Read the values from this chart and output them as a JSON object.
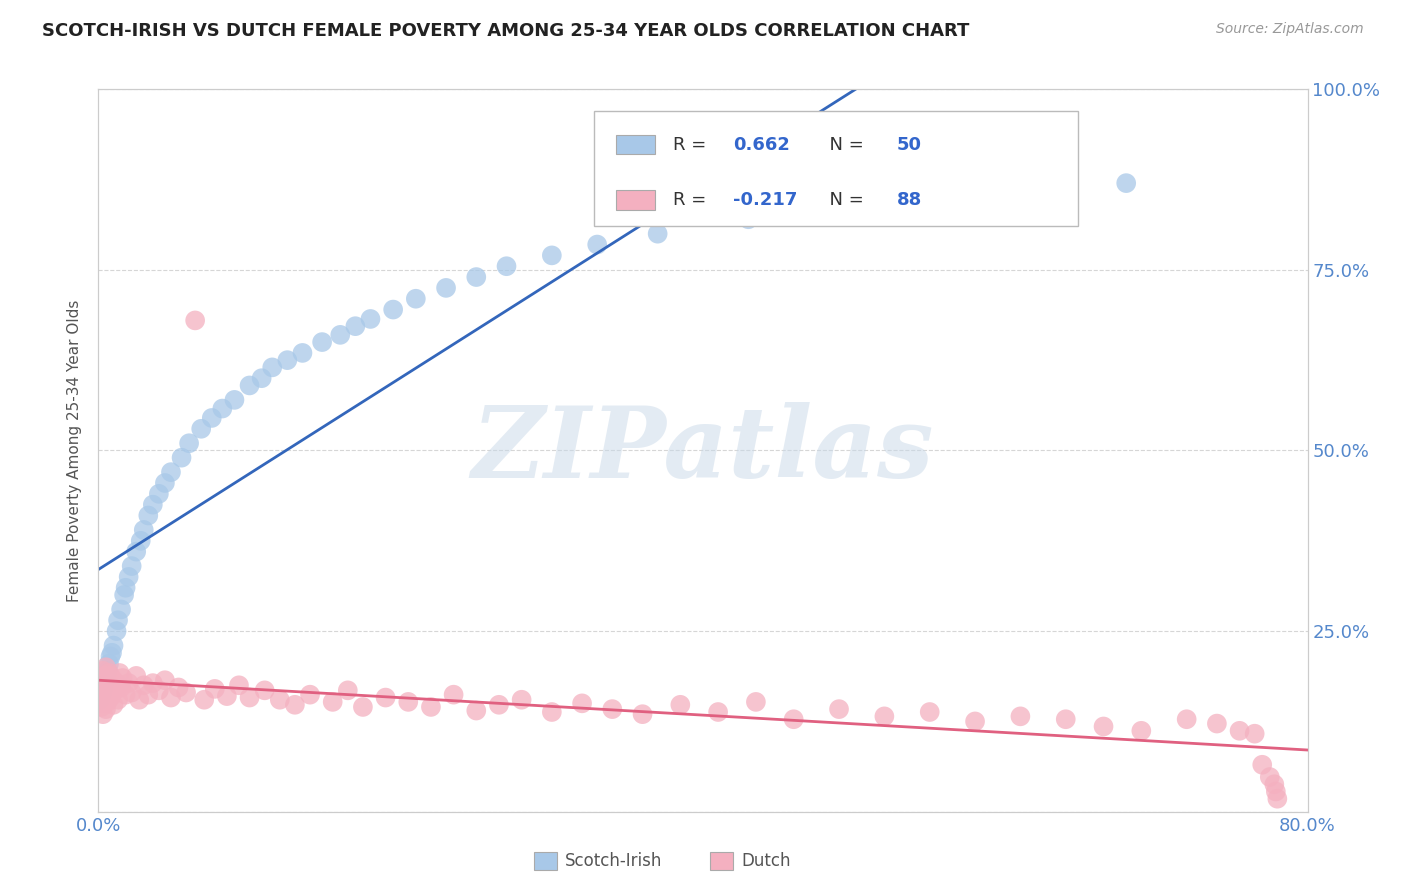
{
  "title": "SCOTCH-IRISH VS DUTCH FEMALE POVERTY AMONG 25-34 YEAR OLDS CORRELATION CHART",
  "source_text": "Source: ZipAtlas.com",
  "ylabel": "Female Poverty Among 25-34 Year Olds",
  "xlim": [
    0.0,
    0.8
  ],
  "ylim": [
    0.0,
    1.0
  ],
  "scotch_irish_color": "#a8c8e8",
  "dutch_color": "#f4b0c0",
  "scotch_irish_line_color": "#3366bb",
  "dutch_line_color": "#e06080",
  "scotch_irish_R": 0.662,
  "scotch_irish_N": 50,
  "dutch_R": -0.217,
  "dutch_N": 88,
  "legend_R_color": "#3366cc",
  "watermark": "ZIPatlas",
  "background_color": "#ffffff",
  "grid_color": "#cccccc",
  "scotch_irish_x": [
    0.001,
    0.002,
    0.003,
    0.004,
    0.005,
    0.006,
    0.007,
    0.008,
    0.009,
    0.01,
    0.012,
    0.013,
    0.015,
    0.017,
    0.018,
    0.02,
    0.022,
    0.025,
    0.028,
    0.03,
    0.033,
    0.036,
    0.04,
    0.044,
    0.048,
    0.055,
    0.06,
    0.068,
    0.075,
    0.082,
    0.09,
    0.1,
    0.108,
    0.115,
    0.125,
    0.135,
    0.148,
    0.16,
    0.17,
    0.18,
    0.195,
    0.21,
    0.23,
    0.25,
    0.27,
    0.3,
    0.33,
    0.37,
    0.43,
    0.68
  ],
  "scotch_irish_y": [
    0.155,
    0.162,
    0.17,
    0.18,
    0.19,
    0.195,
    0.205,
    0.215,
    0.22,
    0.23,
    0.25,
    0.265,
    0.28,
    0.3,
    0.31,
    0.325,
    0.34,
    0.36,
    0.375,
    0.39,
    0.41,
    0.425,
    0.44,
    0.455,
    0.47,
    0.49,
    0.51,
    0.53,
    0.545,
    0.558,
    0.57,
    0.59,
    0.6,
    0.615,
    0.625,
    0.635,
    0.65,
    0.66,
    0.672,
    0.682,
    0.695,
    0.71,
    0.725,
    0.74,
    0.755,
    0.77,
    0.785,
    0.8,
    0.82,
    0.87
  ],
  "dutch_x": [
    0.001,
    0.001,
    0.002,
    0.002,
    0.002,
    0.003,
    0.003,
    0.003,
    0.004,
    0.004,
    0.004,
    0.005,
    0.005,
    0.005,
    0.005,
    0.006,
    0.006,
    0.007,
    0.007,
    0.008,
    0.008,
    0.009,
    0.01,
    0.01,
    0.011,
    0.012,
    0.013,
    0.014,
    0.015,
    0.016,
    0.018,
    0.02,
    0.022,
    0.025,
    0.027,
    0.03,
    0.033,
    0.036,
    0.04,
    0.044,
    0.048,
    0.053,
    0.058,
    0.064,
    0.07,
    0.077,
    0.085,
    0.093,
    0.1,
    0.11,
    0.12,
    0.13,
    0.14,
    0.155,
    0.165,
    0.175,
    0.19,
    0.205,
    0.22,
    0.235,
    0.25,
    0.265,
    0.28,
    0.3,
    0.32,
    0.34,
    0.36,
    0.385,
    0.41,
    0.435,
    0.46,
    0.49,
    0.52,
    0.55,
    0.58,
    0.61,
    0.64,
    0.665,
    0.69,
    0.72,
    0.74,
    0.755,
    0.765,
    0.77,
    0.775,
    0.778,
    0.779,
    0.78
  ],
  "dutch_y": [
    0.155,
    0.165,
    0.145,
    0.175,
    0.185,
    0.135,
    0.16,
    0.195,
    0.15,
    0.172,
    0.188,
    0.142,
    0.168,
    0.185,
    0.2,
    0.152,
    0.178,
    0.165,
    0.192,
    0.158,
    0.188,
    0.172,
    0.148,
    0.182,
    0.168,
    0.178,
    0.155,
    0.192,
    0.172,
    0.185,
    0.162,
    0.178,
    0.165,
    0.188,
    0.155,
    0.175,
    0.162,
    0.178,
    0.168,
    0.182,
    0.158,
    0.172,
    0.165,
    0.68,
    0.155,
    0.17,
    0.16,
    0.175,
    0.158,
    0.168,
    0.155,
    0.148,
    0.162,
    0.152,
    0.168,
    0.145,
    0.158,
    0.152,
    0.145,
    0.162,
    0.14,
    0.148,
    0.155,
    0.138,
    0.15,
    0.142,
    0.135,
    0.148,
    0.138,
    0.152,
    0.128,
    0.142,
    0.132,
    0.138,
    0.125,
    0.132,
    0.128,
    0.118,
    0.112,
    0.128,
    0.122,
    0.112,
    0.108,
    0.065,
    0.048,
    0.038,
    0.028,
    0.018
  ]
}
